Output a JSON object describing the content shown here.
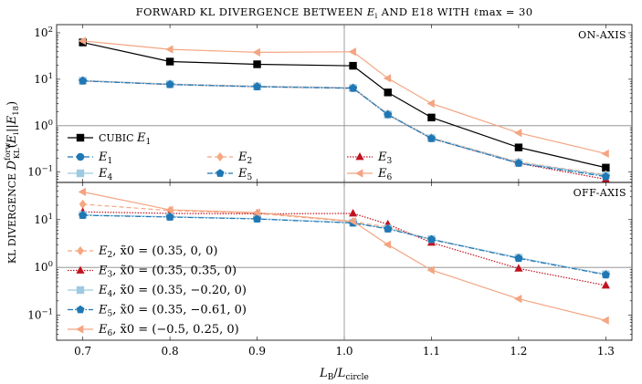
{
  "chart_data": {
    "type": "line",
    "title": "FORWARD KL DIVERGENCE BETWEEN E_i AND E_18 WITH ℓ_max = 30",
    "title_prefix": "FORWARD KL DIVERGENCE BETWEEN ",
    "title_E18": "E18",
    "title_with": "WITH ",
    "title_lmax": "ℓmax = 30",
    "xlabel": "L_B/L_circle",
    "ylabel": "KL DIVERGENCE D_KL^forw(E_i||E_18)",
    "x": [
      0.7,
      0.8,
      0.9,
      1.01,
      1.05,
      1.1,
      1.2,
      1.3
    ],
    "x_ticks": [
      "0.7",
      "0.8",
      "0.9",
      "1.0",
      "1.1",
      "1.2",
      "1.3"
    ],
    "xlim": [
      0.67,
      1.33
    ],
    "vline_x": 1.0,
    "scale": "log",
    "panels": [
      {
        "label": "ON-AXIS",
        "ylim": [
          0.06,
          150
        ],
        "hline": 1,
        "series": [
          {
            "name": "CUBIC E1",
            "color": "#000000",
            "dash": "",
            "marker": "square",
            "values": [
              62,
              24,
              21,
              19.5,
              5.2,
              1.5,
              0.34,
              0.125
            ]
          },
          {
            "name": "E1",
            "color": "#1f77b4",
            "dash": "6,3",
            "marker": "circle",
            "values": [
              9.3,
              7.8,
              7.0,
              6.5,
              1.75,
              0.54,
              0.16,
              0.085
            ]
          },
          {
            "name": "E2",
            "color": "#f5a882",
            "dash": "5,3",
            "marker": "diamond",
            "values": [
              9.4,
              7.9,
              7.1,
              6.6,
              1.78,
              0.55,
              0.165,
              0.088
            ]
          },
          {
            "name": "E3",
            "color": "#c1121f",
            "dash": "1.5,1.5",
            "marker": "triangle",
            "values": [
              9.2,
              7.7,
              6.9,
              6.4,
              1.72,
              0.53,
              0.155,
              0.07
            ]
          },
          {
            "name": "E4",
            "color": "#9ecae1",
            "dash": "",
            "marker": "square",
            "values": [
              9.3,
              7.8,
              7.0,
              6.5,
              1.75,
              0.54,
              0.16,
              0.085
            ]
          },
          {
            "name": "E5",
            "color": "#1f77b4",
            "dash": "6,2,1.5,2",
            "marker": "pentagon",
            "values": [
              9.2,
              7.7,
              6.9,
              6.4,
              1.73,
              0.53,
              0.155,
              0.08
            ]
          },
          {
            "name": "E6",
            "color": "#f4a582",
            "dash": "",
            "marker": "triangle-left",
            "values": [
              67,
              44,
              38,
              39,
              10.5,
              3.0,
              0.7,
              0.25
            ]
          }
        ]
      },
      {
        "label": "OFF-AXIS",
        "ylim": [
          0.03,
          60
        ],
        "hline": 1,
        "series": [
          {
            "name": "E2",
            "params": "x̃0 = (0.35, 0, 0)",
            "color": "#f5a882",
            "dash": "5,3",
            "marker": "diamond",
            "values": [
              21,
              15.5,
              13.5,
              9.0,
              7.0,
              3.8,
              1.6,
              0.72
            ]
          },
          {
            "name": "E3",
            "params": "x̃0 = (0.35, 0.35, 0)",
            "color": "#c1121f",
            "dash": "1.5,1.5",
            "marker": "triangle",
            "values": [
              14.5,
              13.5,
              13.2,
              13.5,
              8.0,
              3.3,
              0.95,
              0.42
            ]
          },
          {
            "name": "E4",
            "params": "x̃0 = (0.35, −0.20, 0)",
            "color": "#9ecae1",
            "dash": "",
            "marker": "square",
            "values": [
              12.5,
              11.5,
              10.5,
              8.6,
              6.5,
              3.9,
              1.6,
              0.72
            ]
          },
          {
            "name": "E5",
            "params": "x̃0 = (0.35, −0.61, 0)",
            "color": "#1f77b4",
            "dash": "6,2,1.5,2",
            "marker": "pentagon",
            "values": [
              12.3,
              11.3,
              10.3,
              8.5,
              6.4,
              3.85,
              1.55,
              0.7
            ]
          },
          {
            "name": "E6",
            "params": "x̃0 = (−0.5, 0.25, 0)",
            "color": "#f4a582",
            "dash": "",
            "marker": "triangle-left",
            "values": [
              38,
              16,
              14,
              9.2,
              3.0,
              0.88,
              0.22,
              0.078
            ]
          }
        ]
      }
    ],
    "y_ticks": [
      {
        "base": "10",
        "exp": "2"
      },
      {
        "base": "10",
        "exp": "1"
      },
      {
        "base": "10",
        "exp": "0"
      },
      {
        "base": "10",
        "exp": "−1"
      }
    ]
  }
}
